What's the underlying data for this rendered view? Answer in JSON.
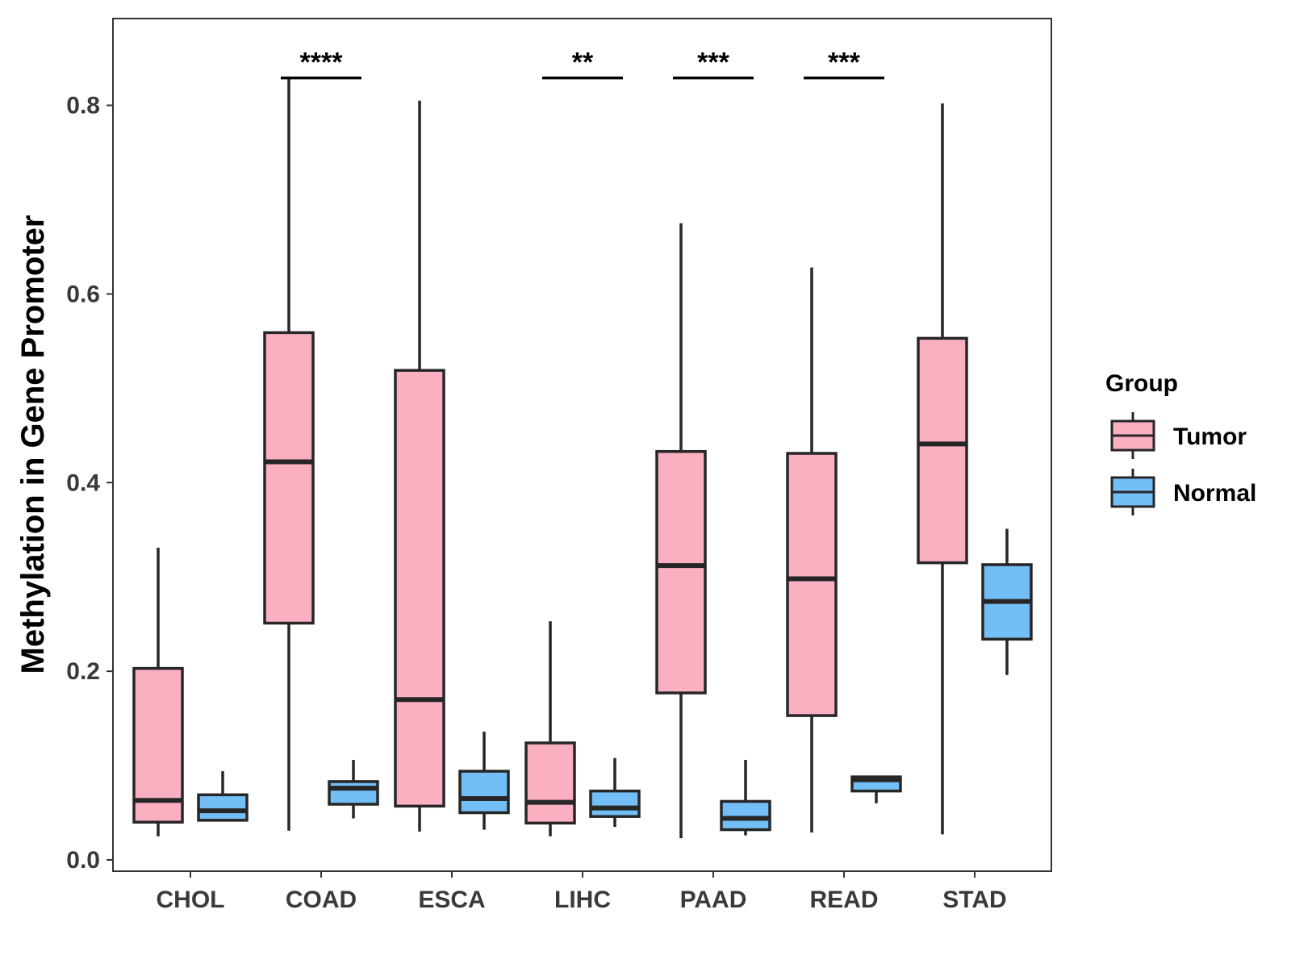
{
  "chart_data": {
    "type": "boxplot",
    "title": "",
    "xlabel": "",
    "ylabel": "Methylation in Gene Promoter",
    "ylim": [
      -0.012,
      0.892
    ],
    "yticks": [
      0.0,
      0.2,
      0.4,
      0.6,
      0.8
    ],
    "ytick_labels": [
      "0.0",
      "0.2",
      "0.4",
      "0.6",
      "0.8"
    ],
    "grid": false,
    "legend_position": "right",
    "legend_title": "Group",
    "categories": [
      "CHOL",
      "COAD",
      "ESCA",
      "LIHC",
      "PAAD",
      "READ",
      "STAD"
    ],
    "groups": [
      {
        "name": "Tumor",
        "color": "#FBB0C2"
      },
      {
        "name": "Normal",
        "color": "#74BEF7"
      }
    ],
    "series": [
      {
        "name": "Tumor",
        "boxes": [
          {
            "min": 0.025,
            "q1": 0.04,
            "median": 0.063,
            "q3": 0.203,
            "max": 0.331
          },
          {
            "min": 0.031,
            "q1": 0.251,
            "median": 0.422,
            "q3": 0.559,
            "max": 0.829
          },
          {
            "min": 0.03,
            "q1": 0.057,
            "median": 0.17,
            "q3": 0.519,
            "max": 0.805
          },
          {
            "min": 0.025,
            "q1": 0.039,
            "median": 0.061,
            "q3": 0.124,
            "max": 0.253
          },
          {
            "min": 0.023,
            "q1": 0.177,
            "median": 0.312,
            "q3": 0.433,
            "max": 0.675
          },
          {
            "min": 0.029,
            "q1": 0.153,
            "median": 0.298,
            "q3": 0.431,
            "max": 0.628
          },
          {
            "min": 0.027,
            "q1": 0.315,
            "median": 0.441,
            "q3": 0.553,
            "max": 0.802
          }
        ]
      },
      {
        "name": "Normal",
        "boxes": [
          {
            "min": 0.041,
            "q1": 0.042,
            "median": 0.052,
            "q3": 0.069,
            "max": 0.094
          },
          {
            "min": 0.044,
            "q1": 0.059,
            "median": 0.076,
            "q3": 0.083,
            "max": 0.106
          },
          {
            "min": 0.032,
            "q1": 0.05,
            "median": 0.065,
            "q3": 0.094,
            "max": 0.136
          },
          {
            "min": 0.035,
            "q1": 0.046,
            "median": 0.055,
            "q3": 0.073,
            "max": 0.108
          },
          {
            "min": 0.026,
            "q1": 0.032,
            "median": 0.044,
            "q3": 0.062,
            "max": 0.106
          },
          {
            "min": 0.06,
            "q1": 0.073,
            "median": 0.085,
            "q3": 0.088,
            "max": 0.088
          },
          {
            "min": 0.196,
            "q1": 0.234,
            "median": 0.274,
            "q3": 0.313,
            "max": 0.351
          }
        ]
      }
    ],
    "significance": [
      {
        "category": "COAD",
        "label": "****",
        "y": 0.829
      },
      {
        "category": "LIHC",
        "label": "**",
        "y": 0.829
      },
      {
        "category": "PAAD",
        "label": "***",
        "y": 0.829
      },
      {
        "category": "READ",
        "label": "***",
        "y": 0.829
      }
    ]
  }
}
